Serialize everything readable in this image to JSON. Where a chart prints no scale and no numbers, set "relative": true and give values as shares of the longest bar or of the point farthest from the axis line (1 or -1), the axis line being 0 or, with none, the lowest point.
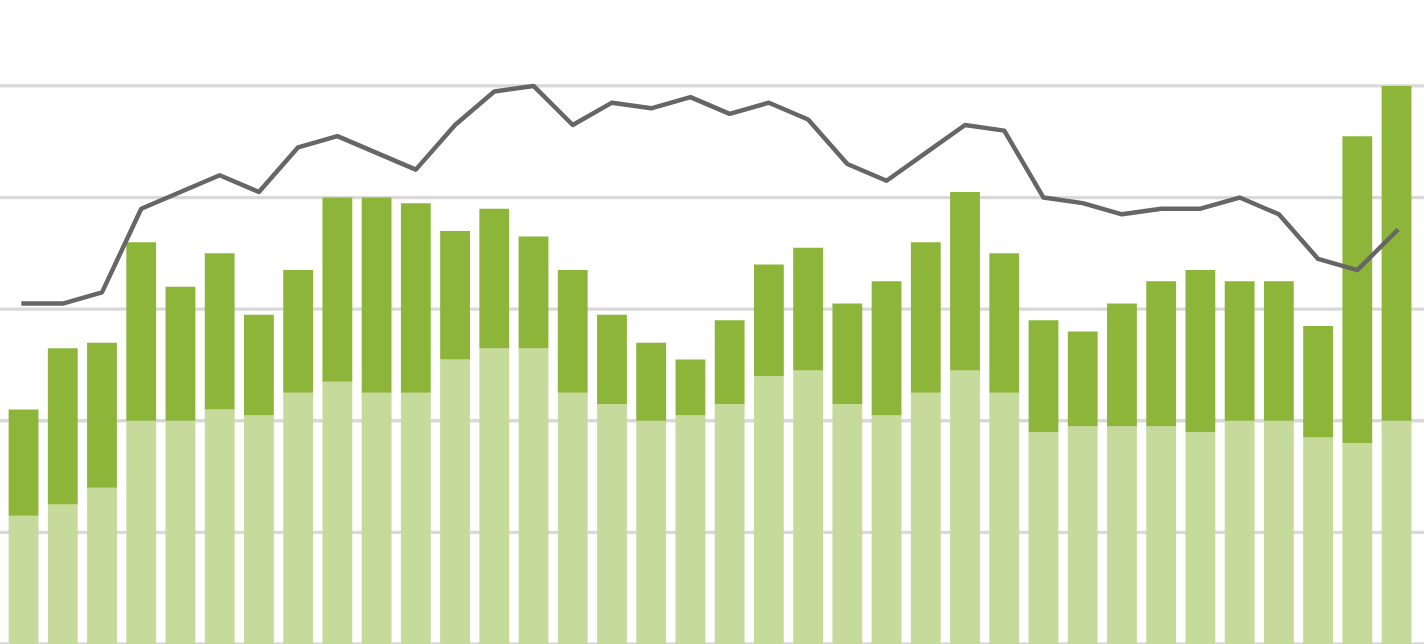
{
  "chart_data": [
    {
      "type": "bar",
      "stacked": true,
      "relative": true,
      "grid": "y",
      "categories": [
        null,
        null,
        null,
        null,
        null,
        null,
        null,
        null,
        null,
        null,
        null,
        null,
        null,
        null,
        null,
        null,
        null,
        null,
        null,
        null,
        null,
        null,
        null,
        null,
        null,
        null,
        null,
        null,
        null,
        null,
        null,
        null,
        null,
        null,
        null,
        null
      ],
      "series": [
        {
          "color": "#c6da9c",
          "values": [
            0.23,
            0.25,
            0.28,
            0.4,
            0.4,
            0.42,
            0.41,
            0.45,
            0.47,
            0.45,
            0.45,
            0.51,
            0.53,
            0.53,
            0.45,
            0.43,
            0.4,
            0.41,
            0.43,
            0.48,
            0.49,
            0.43,
            0.41,
            0.45,
            0.49,
            0.45,
            0.38,
            0.39,
            0.39,
            0.39,
            0.38,
            0.4,
            0.4,
            0.37,
            0.36,
            0.4
          ]
        },
        {
          "color": "#8db53a",
          "values": [
            0.19,
            0.28,
            0.26,
            0.32,
            0.24,
            0.28,
            0.18,
            0.22,
            0.33,
            0.35,
            0.34,
            0.23,
            0.25,
            0.2,
            0.22,
            0.16,
            0.14,
            0.1,
            0.15,
            0.2,
            0.22,
            0.18,
            0.24,
            0.27,
            0.32,
            0.25,
            0.2,
            0.17,
            0.22,
            0.26,
            0.29,
            0.25,
            0.25,
            0.2,
            0.55,
            0.6
          ]
        }
      ]
    },
    {
      "type": "line",
      "relative": true,
      "categories": [
        null,
        null,
        null,
        null,
        null,
        null,
        null,
        null,
        null,
        null,
        null,
        null,
        null,
        null,
        null,
        null,
        null,
        null,
        null,
        null,
        null,
        null,
        null,
        null,
        null,
        null,
        null,
        null,
        null,
        null,
        null,
        null,
        null,
        null,
        null,
        null
      ],
      "series": [
        {
          "color": "#666666",
          "values": [
            0.61,
            0.61,
            0.63,
            0.78,
            0.81,
            0.84,
            0.81,
            0.89,
            0.91,
            0.88,
            0.85,
            0.93,
            0.99,
            1.0,
            0.93,
            0.97,
            0.96,
            0.98,
            0.95,
            0.97,
            0.94,
            0.86,
            0.83,
            0.88,
            0.93,
            0.92,
            0.8,
            0.79,
            0.77,
            0.78,
            0.78,
            0.8,
            0.77,
            0.69,
            0.67,
            0.74
          ]
        }
      ]
    }
  ]
}
